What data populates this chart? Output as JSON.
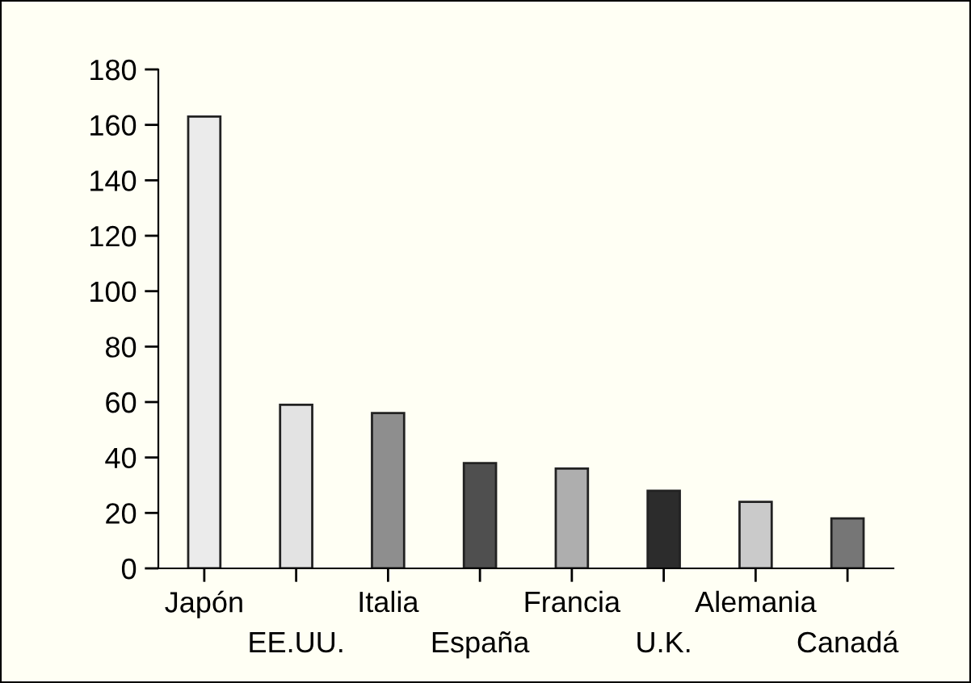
{
  "chart_data": {
    "type": "bar",
    "categories": [
      "Japón",
      "EE.UU.",
      "Italia",
      "España",
      "Francia",
      "U.K.",
      "Alemania",
      "Canadá"
    ],
    "values": [
      163,
      59,
      56,
      38,
      36,
      28,
      24,
      18
    ],
    "colors": [
      "#ebebeb",
      "#e3e3e3",
      "#8e8e8e",
      "#4f4f4f",
      "#aeaeae",
      "#2c2c2c",
      "#cacaca",
      "#767676"
    ],
    "ylim": [
      0,
      180
    ],
    "yticks": [
      0,
      20,
      40,
      60,
      80,
      100,
      120,
      140,
      160,
      180
    ],
    "grid": false,
    "legend": false
  }
}
